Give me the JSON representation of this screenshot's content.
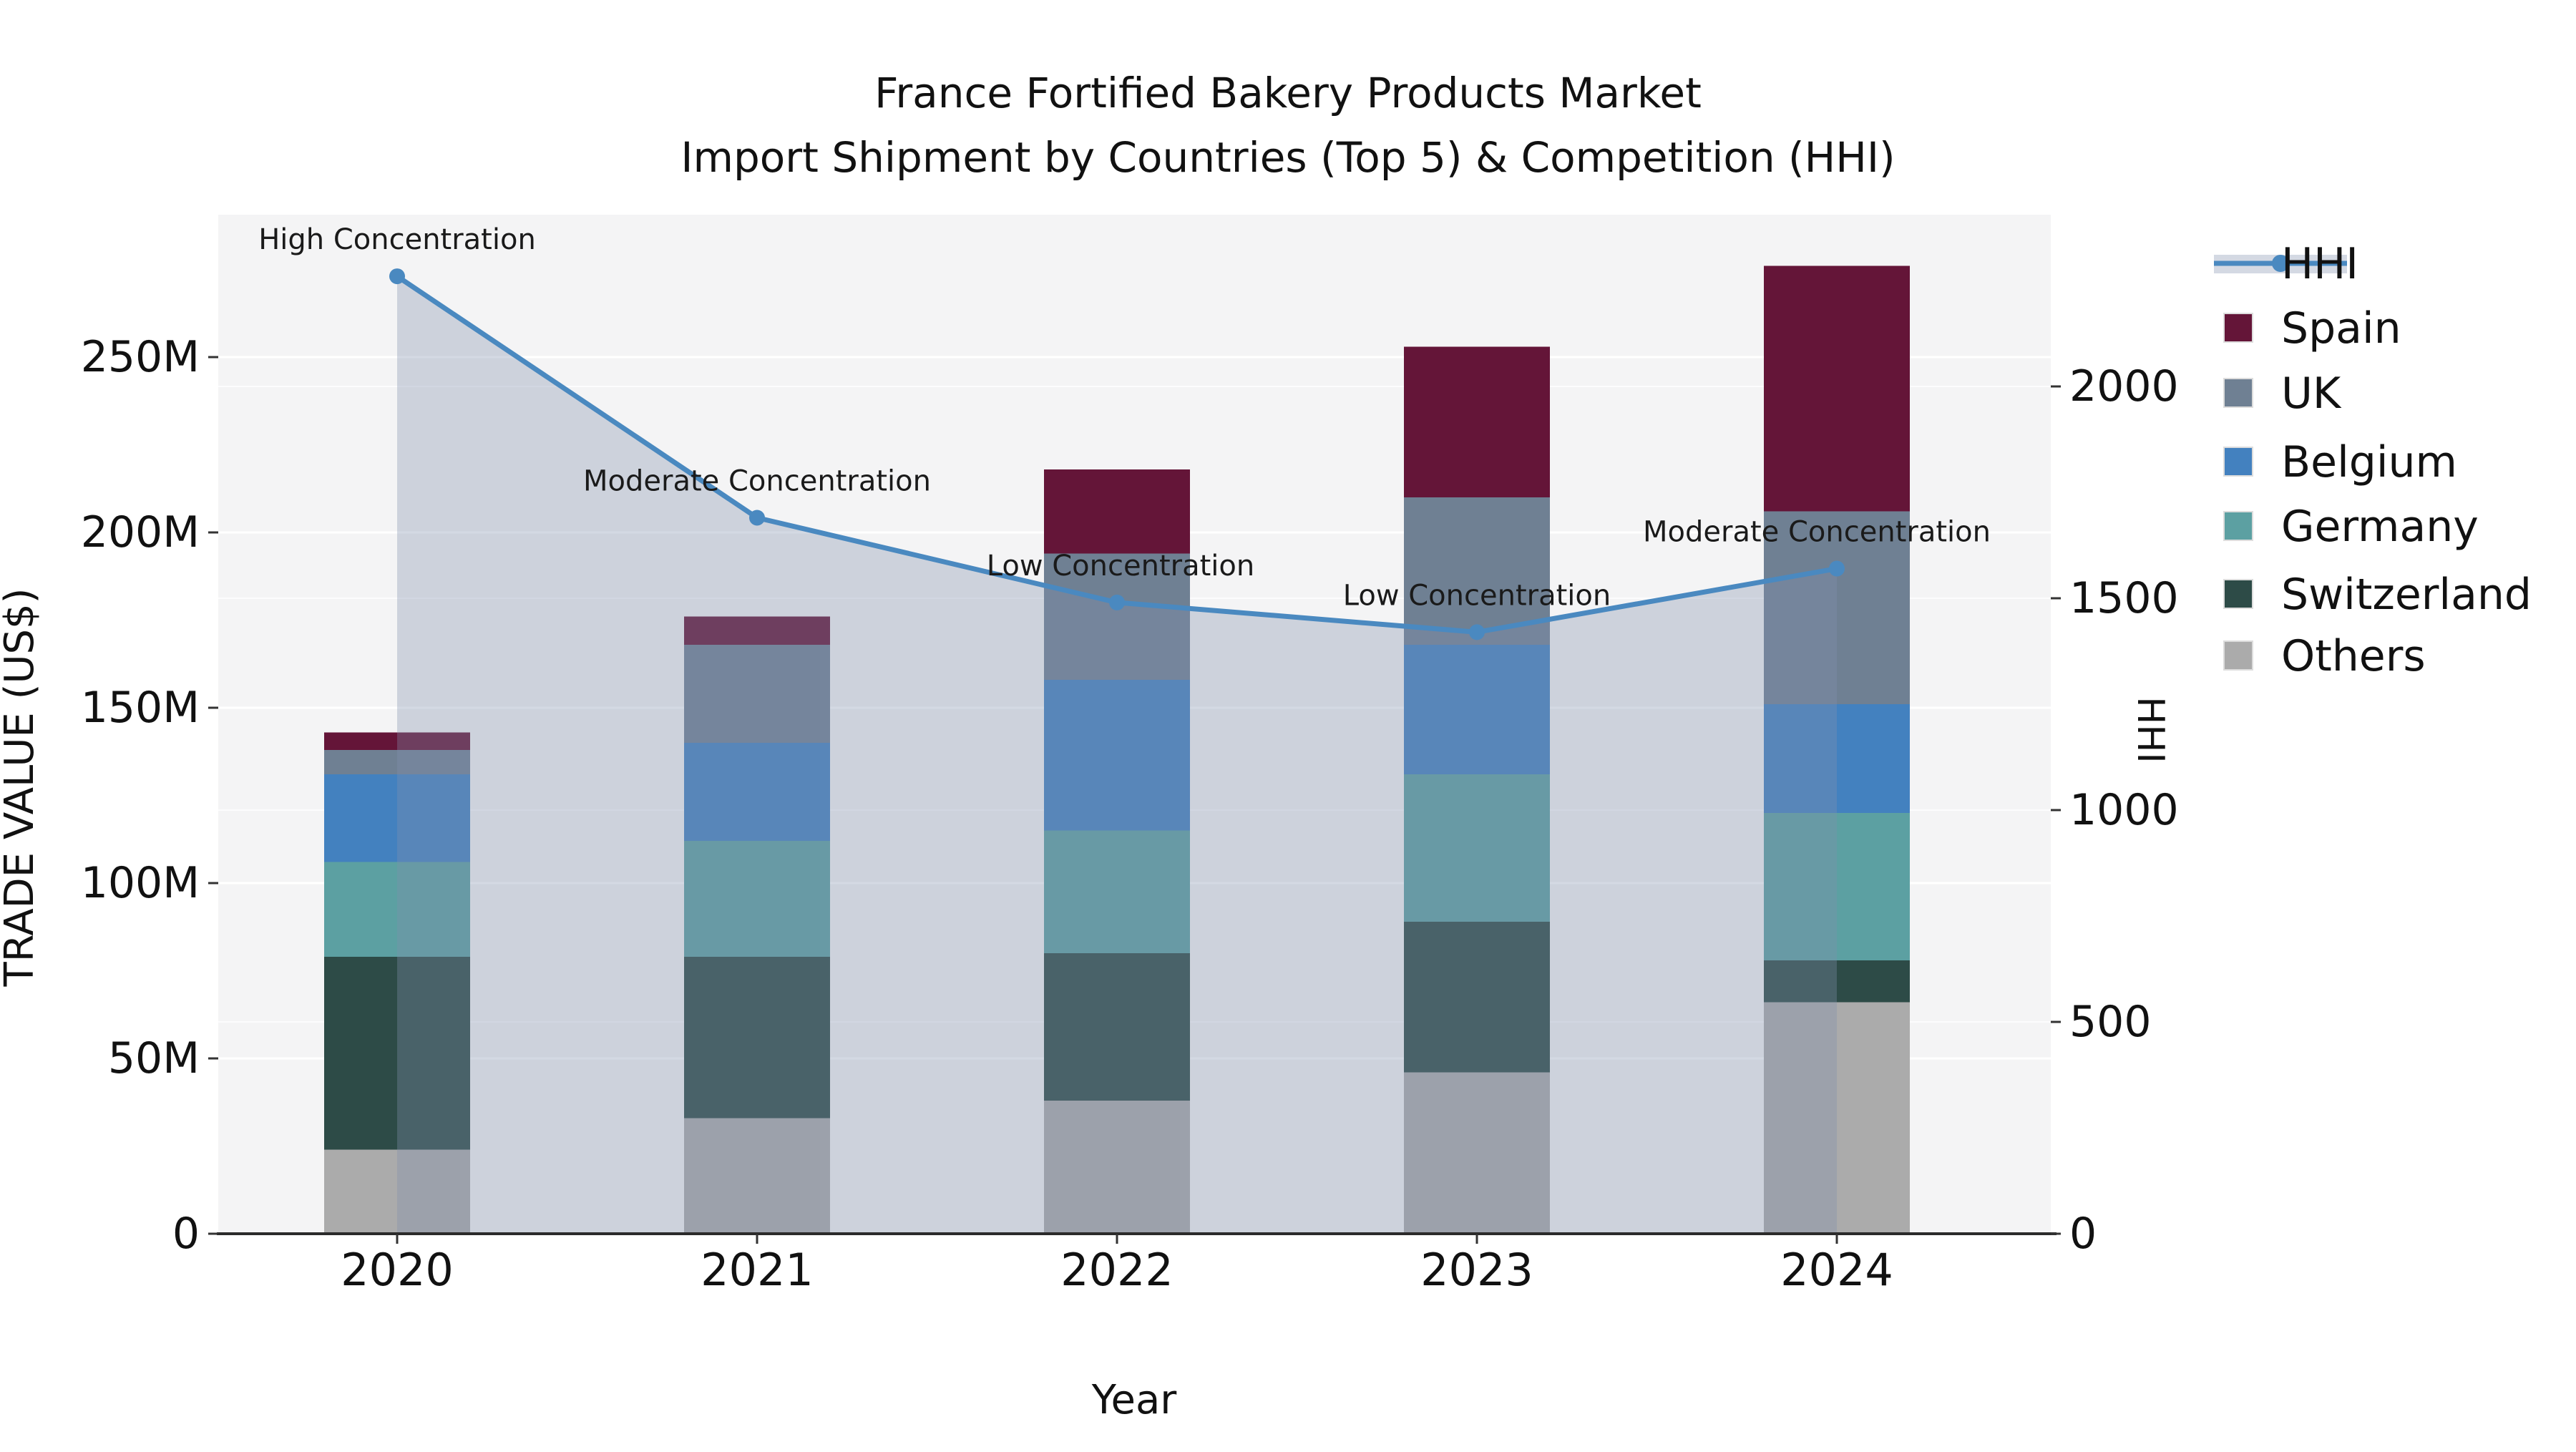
{
  "title": {
    "line1": "France Fortified Bakery Products Market",
    "line2": "Import Shipment by Countries (Top 5) & Competition (HHI)"
  },
  "axes": {
    "x": {
      "label": "Year",
      "ticks": [
        "2020",
        "2021",
        "2022",
        "2023",
        "2024"
      ]
    },
    "y_left": {
      "label": "TRADE VALUE (US$)",
      "ticks": [
        "0",
        "50M",
        "100M",
        "150M",
        "200M",
        "250M"
      ],
      "unit": "M US$",
      "max": 250
    },
    "y_right": {
      "label": "HHI",
      "ticks": [
        "0",
        "500",
        "1000",
        "1500",
        "2000"
      ],
      "max": 2000
    }
  },
  "legend": {
    "items": [
      {
        "label": "HHI",
        "type": "line",
        "color": "#4a89c0"
      },
      {
        "label": "Spain",
        "type": "swatch",
        "color": "#641538"
      },
      {
        "label": "UK",
        "type": "swatch",
        "color": "#6f8093"
      },
      {
        "label": "Belgium",
        "type": "swatch",
        "color": "#4381bf"
      },
      {
        "label": "Germany",
        "type": "swatch",
        "color": "#5ca0a2"
      },
      {
        "label": "Switzerland",
        "type": "swatch",
        "color": "#2d4b47"
      },
      {
        "label": "Others",
        "type": "swatch",
        "color": "#ababab"
      }
    ]
  },
  "chart_data": {
    "type": "combo-stacked-bar-line",
    "categories": [
      "2020",
      "2021",
      "2022",
      "2023",
      "2024"
    ],
    "bar_unit": "M US$",
    "series": [
      {
        "name": "Spain",
        "type": "bar",
        "color": "#641538",
        "values": [
          5,
          8,
          24,
          43,
          70
        ]
      },
      {
        "name": "UK",
        "type": "bar",
        "color": "#6f8093",
        "values": [
          7,
          28,
          36,
          42,
          55
        ]
      },
      {
        "name": "Belgium",
        "type": "bar",
        "color": "#4381bf",
        "values": [
          25,
          28,
          43,
          37,
          31
        ]
      },
      {
        "name": "Germany",
        "type": "bar",
        "color": "#5ca0a2",
        "values": [
          27,
          33,
          35,
          42,
          42
        ]
      },
      {
        "name": "Switzerland",
        "type": "bar",
        "color": "#2d4b47",
        "values": [
          55,
          46,
          42,
          43,
          12
        ]
      },
      {
        "name": "Others",
        "type": "bar",
        "color": "#ababab",
        "values": [
          24,
          33,
          38,
          46,
          66
        ]
      }
    ],
    "bar_totals": [
      143,
      176,
      218,
      253,
      276
    ],
    "stack_order_bottom_to_top": [
      "Others",
      "Switzerland",
      "Germany",
      "Belgium",
      "UK",
      "Spain"
    ],
    "line_series": {
      "name": "HHI",
      "color": "#4a89c0",
      "area_fill_color": "#8090ac",
      "area_fill_opacity": 0.34,
      "values": [
        2260,
        1690,
        1490,
        1420,
        1570
      ]
    },
    "annotations": [
      {
        "category": "2020",
        "text": "High Concentration"
      },
      {
        "category": "2021",
        "text": "Moderate Concentration"
      },
      {
        "category": "2022",
        "text": "Low Concentration"
      },
      {
        "category": "2023",
        "text": "Low Concentration"
      },
      {
        "category": "2024",
        "text": "Moderate Concentration"
      }
    ],
    "ylim_left": [
      0,
      250
    ],
    "ylim_right": [
      0,
      2000
    ],
    "grid": true,
    "legend_position": "right",
    "plot_background": "#f4f4f5",
    "gridline_color": "#e8e8ea",
    "axis_line_color": "#2b2b2b",
    "text_color": "#111111"
  }
}
